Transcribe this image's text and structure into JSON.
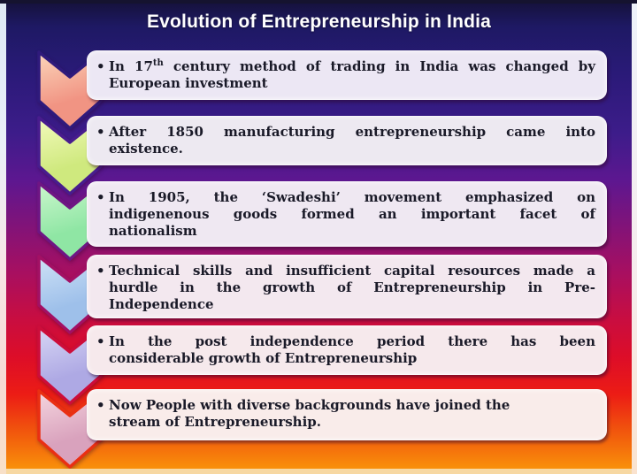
{
  "slide": {
    "title": "Evolution of Entrepreneurship in India",
    "bullet_char": "•"
  },
  "palette": {
    "title_color": "#ffffff",
    "body_text_color": "#1a1a28",
    "background_top": "#1e1964",
    "background_purple": "#5d1790",
    "background_magenta": "#a80f60",
    "background_red": "#e6121b",
    "background_orange": "#f8900a"
  },
  "rows": [
    {
      "chevron": {
        "icon": "chevron-down-icon",
        "light": "#fbd6bb",
        "main": "#f19483",
        "outline": "#2f1a7c"
      },
      "box_bg": "#ece7f4",
      "justify": true,
      "lines": [
        "In 17th century method of trading in India was changed by",
        "European investment"
      ]
    },
    {
      "chevron": {
        "icon": "chevron-down-icon",
        "light": "#f3fabc",
        "main": "#cfe97e",
        "outline": "#481c8e"
      },
      "box_bg": "#ede9f1",
      "justify": true,
      "lines": [
        "After 1850 manufacturing entrepreneurship came into",
        "existence."
      ]
    },
    {
      "chevron": {
        "icon": "chevron-down-icon",
        "light": "#ccf7cd",
        "main": "#8fe6a4",
        "outline": "#6f1584"
      },
      "box_bg": "#efe8f2",
      "justify": true,
      "lines": [
        "In 1905, the ‘Swadeshi’ movement emphasized on",
        "indigenenous goods formed an important facet of",
        "nationalism"
      ]
    },
    {
      "chevron": {
        "icon": "chevron-down-icon",
        "light": "#cfe2f6",
        "main": "#9ec0ea",
        "outline": "#a31064"
      },
      "box_bg": "#f3e8ef",
      "justify": true,
      "lines": [
        "Technical skills and insufficient capital resources made a",
        "hurdle in the growth of Entrepreneurship in Pre-",
        "Independence"
      ]
    },
    {
      "chevron": {
        "icon": "chevron-down-icon",
        "light": "#d8d7f5",
        "main": "#aea9e4",
        "outline": "#cd0d3a"
      },
      "box_bg": "#f6e9ec",
      "justify": true,
      "lines": [
        "In the post independence period there has been",
        "considerable growth of Entrepreneurship"
      ]
    },
    {
      "chevron": {
        "icon": "chevron-down-icon",
        "light": "#f5d6df",
        "main": "#d9a2bd",
        "outline": "#ea2f12"
      },
      "box_bg": "#f9ecea",
      "justify": false,
      "lines": [
        "Now People with diverse backgrounds have joined the",
        "stream of Entrepreneurship."
      ]
    }
  ]
}
